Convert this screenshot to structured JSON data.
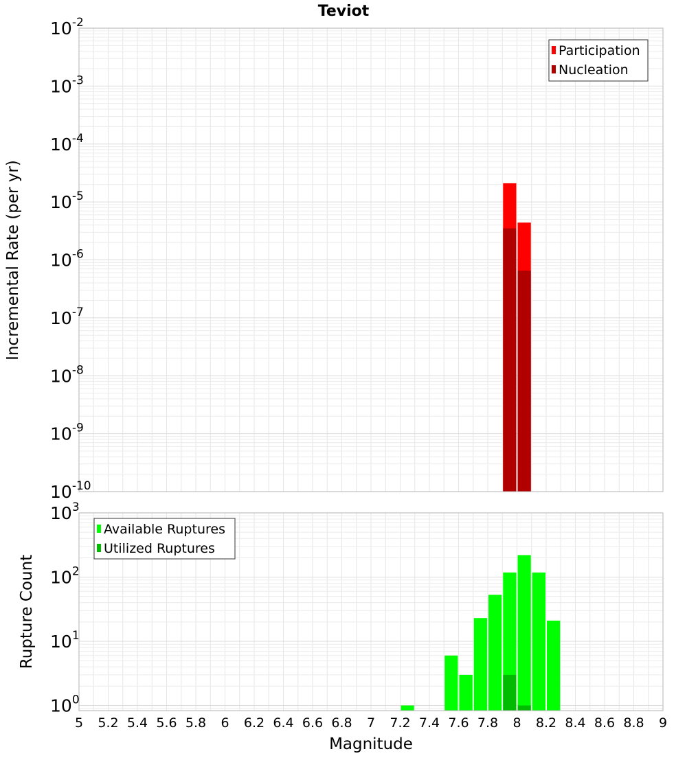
{
  "chart_data": [
    {
      "type": "bar",
      "title": "Teviot",
      "xlabel": "",
      "ylabel": "Incremental Rate (per yr)",
      "yscale": "log",
      "ylim_exponents": [
        -10,
        -2
      ],
      "y_tick_labels": [
        {
          "base": "10",
          "exp": "-10"
        },
        {
          "base": "10",
          "exp": "-9"
        },
        {
          "base": "10",
          "exp": "-8"
        },
        {
          "base": "10",
          "exp": "-7"
        },
        {
          "base": "10",
          "exp": "-6"
        },
        {
          "base": "10",
          "exp": "-5"
        },
        {
          "base": "10",
          "exp": "-4"
        },
        {
          "base": "10",
          "exp": "-3"
        },
        {
          "base": "10",
          "exp": "-2"
        }
      ],
      "xlim": [
        5,
        9
      ],
      "bin_width": 0.1,
      "legend": {
        "position": "top-right",
        "entries": [
          {
            "label": "Participation",
            "color": "#ff0000"
          },
          {
            "label": "Nucleation",
            "color": "#b00000"
          }
        ]
      },
      "series": [
        {
          "name": "Participation",
          "color": "#ff0000",
          "x": [
            7.95,
            8.05
          ],
          "values": [
            2.1e-05,
            4.4e-06
          ]
        },
        {
          "name": "Nucleation",
          "color": "#b00000",
          "x": [
            7.95,
            8.05
          ],
          "values": [
            3.5e-06,
            6.5e-07
          ]
        }
      ]
    },
    {
      "type": "bar",
      "title": "",
      "xlabel": "Magnitude",
      "ylabel": "Rupture Count",
      "yscale": "log",
      "ylim_exponents": [
        -0.08,
        3
      ],
      "y_tick_labels": [
        {
          "base": "10",
          "exp": "0"
        },
        {
          "base": "10",
          "exp": "1"
        },
        {
          "base": "10",
          "exp": "2"
        },
        {
          "base": "10",
          "exp": "3"
        }
      ],
      "xlim": [
        5,
        9
      ],
      "bin_width": 0.1,
      "x_tick_labels": [
        "5",
        "5.2",
        "5.4",
        "5.6",
        "5.8",
        "6",
        "6.2",
        "6.4",
        "6.6",
        "6.8",
        "7",
        "7.2",
        "7.4",
        "7.6",
        "7.8",
        "8",
        "8.2",
        "8.4",
        "8.6",
        "8.8",
        "9"
      ],
      "legend": {
        "position": "top-left",
        "entries": [
          {
            "label": "Available Ruptures",
            "color": "#00ff00"
          },
          {
            "label": "Utilized Ruptures",
            "color": "#00bb00"
          }
        ]
      },
      "series": [
        {
          "name": "Available Ruptures",
          "color": "#00ff00",
          "x": [
            7.25,
            7.55,
            7.65,
            7.75,
            7.85,
            7.95,
            8.05,
            8.15,
            8.25
          ],
          "values": [
            1,
            6,
            3,
            23,
            53,
            118,
            220,
            118,
            21
          ]
        },
        {
          "name": "Utilized Ruptures",
          "color": "#00bb00",
          "x": [
            7.95,
            8.05
          ],
          "values": [
            3,
            1
          ]
        }
      ]
    }
  ]
}
